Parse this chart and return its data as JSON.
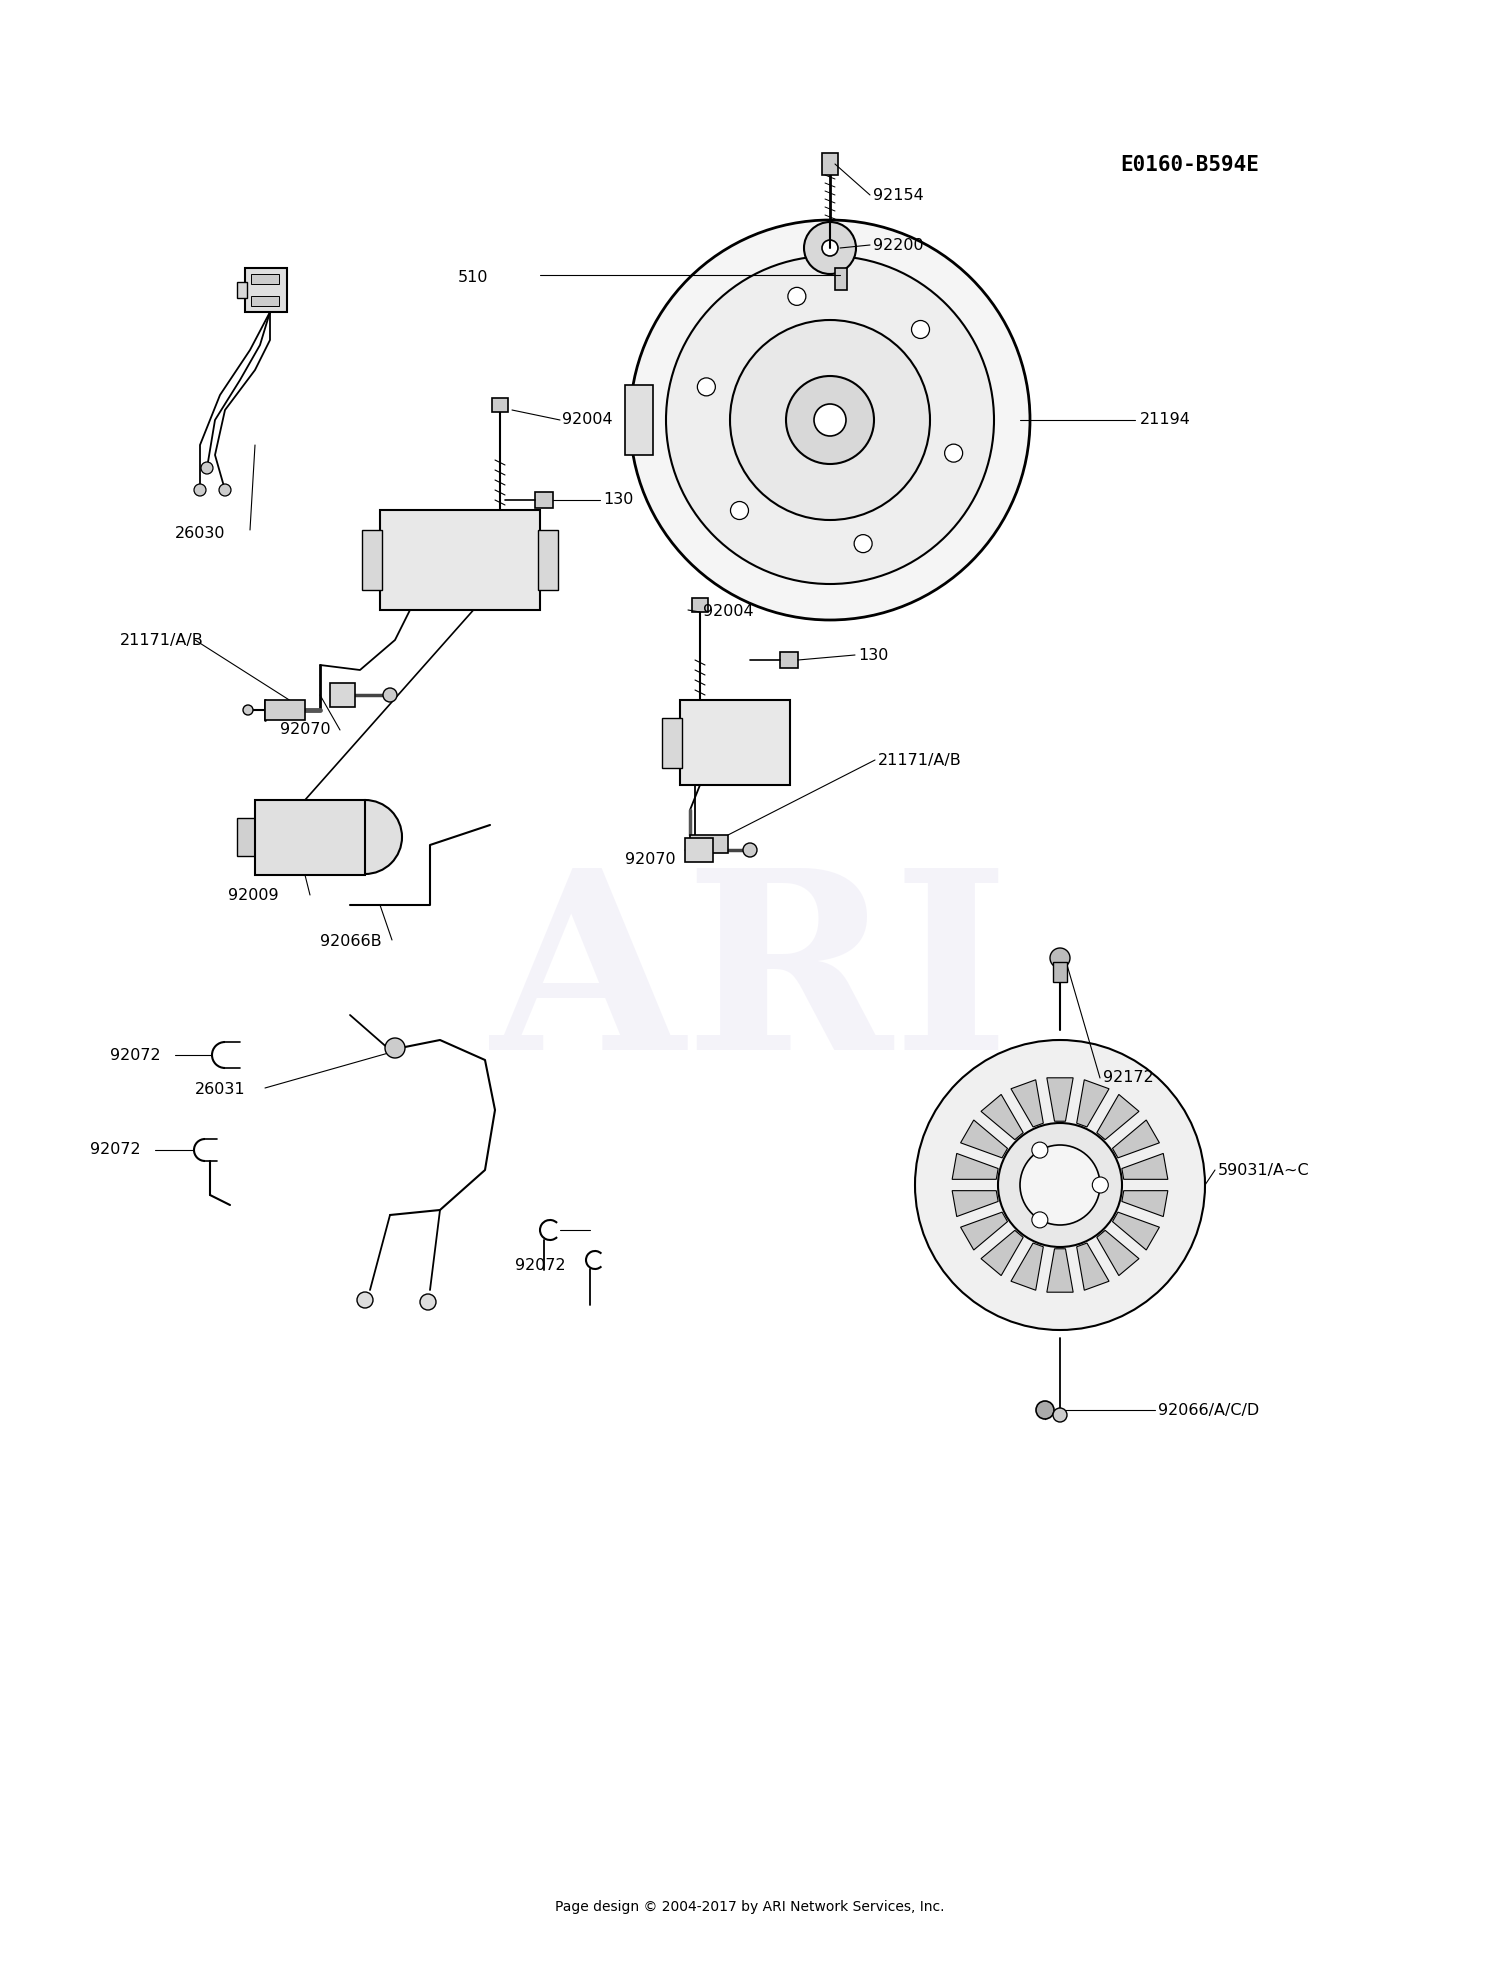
{
  "bg_color": "#ffffff",
  "text_color": "#000000",
  "diagram_id": "E0160-B594E",
  "footer": "Page design © 2004-2017 by ARI Network Services, Inc.",
  "watermark": "ARI"
}
